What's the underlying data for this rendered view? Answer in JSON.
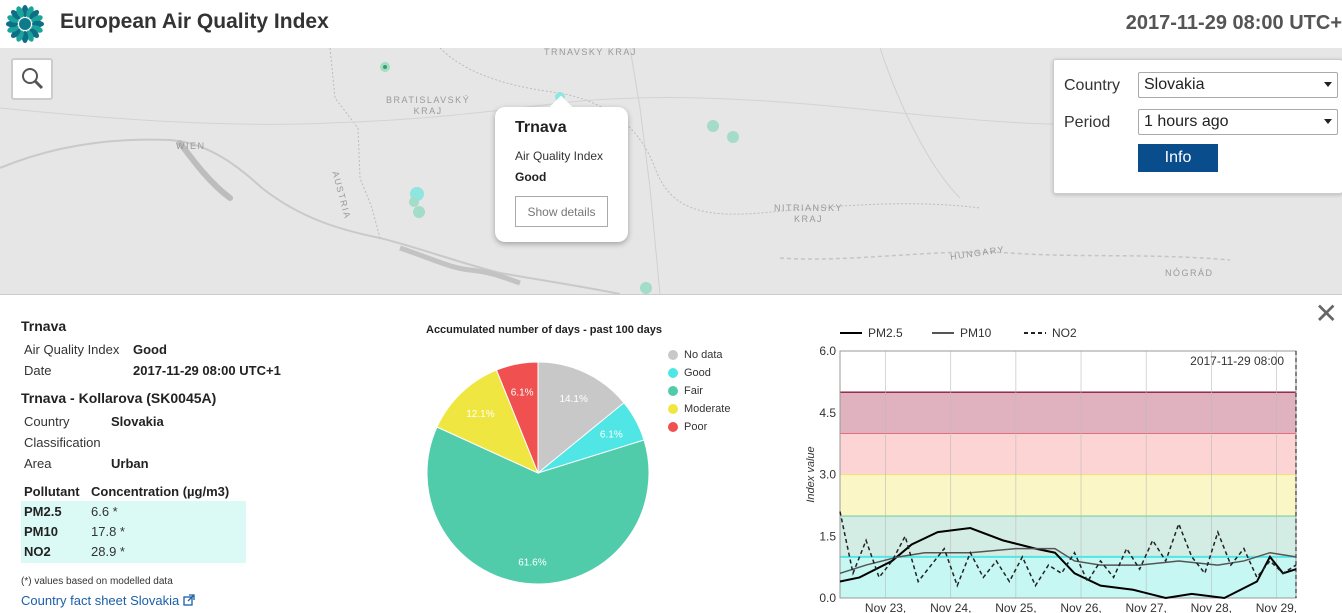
{
  "header": {
    "title": "European Air Quality Index",
    "datetime": "2017-11-29 08:00 UTC+"
  },
  "map": {
    "labels": {
      "trnavsky": "TRNAVSKÝ KRAJ",
      "bratislavsky_1": "BRATISLAVSKÝ",
      "bratislavsky_2": "KRAJ",
      "wien": "WIEN",
      "austria": "AUSTRIA",
      "nitriansky_1": "NITRIANSKY",
      "nitriansky_2": "KRAJ",
      "hungary": "HUNGARY",
      "nograd": "NÓGRÁD"
    },
    "popup": {
      "title": "Trnava",
      "aqi_label": "Air Quality Index",
      "aqi_value": "Good",
      "button": "Show details"
    }
  },
  "controls": {
    "country_label": "Country",
    "country_value": "Slovakia",
    "period_label": "Period",
    "period_value": "1 hours ago",
    "info_button": "Info"
  },
  "details": {
    "city": "Trnava",
    "aqi_label": "Air Quality Index",
    "aqi_value": "Good",
    "date_label": "Date",
    "date_value": "2017-11-29 08:00 UTC+1",
    "station": "Trnava - Kollarova (SK0045A)",
    "country_label": "Country",
    "country_value": "Slovakia",
    "classification_label": "Classification",
    "area_label": "Area",
    "area_value": "Urban",
    "pollutant_header": "Pollutant",
    "concentration_header": "Concentration (µg/m3)",
    "pollutants": [
      {
        "name": "PM2.5",
        "value": "6.6 *"
      },
      {
        "name": "PM10",
        "value": "17.8 *"
      },
      {
        "name": "NO2",
        "value": "28.9 *"
      }
    ],
    "footnote": "(*) values based on modelled data",
    "fact_sheet_link": "Country fact sheet Slovakia"
  },
  "chart_data": [
    {
      "type": "pie",
      "title": "Accumulated number of days - past 100 days",
      "categories": [
        "No data",
        "Good",
        "Fair",
        "Moderate",
        "Poor"
      ],
      "values": [
        14.1,
        6.1,
        61.6,
        12.1,
        6.1
      ],
      "labels": [
        "14.1%",
        "6.1%",
        "61.6%",
        "12.1%",
        "6.1%"
      ],
      "colors": [
        "#c8c8c8",
        "#50e6e6",
        "#50ccaa",
        "#f0e641",
        "#f05050"
      ],
      "legend_placement": "right"
    },
    {
      "type": "line",
      "ylabel": "Index value",
      "ylim": [
        0,
        6
      ],
      "yticks": [
        "0.0",
        "1.5",
        "3.0",
        "4.5",
        "6.0"
      ],
      "xticks": [
        "Nov 23,",
        "Nov 24,",
        "Nov 25,",
        "Nov 26,",
        "Nov 27,",
        "Nov 28,",
        "Nov 29,"
      ],
      "marker_label": "2017-11-29 08:00",
      "bands": [
        {
          "from": 0,
          "to": 1,
          "color": "#c6f7f2",
          "line": "#50e6e6"
        },
        {
          "from": 1,
          "to": 2,
          "color": "#d3ede4",
          "line": "#3cb98c"
        },
        {
          "from": 2,
          "to": 3,
          "color": "#fbf6c6",
          "line": "#f0e641"
        },
        {
          "from": 3,
          "to": 4,
          "color": "#fcd4d4",
          "line": "#e65050"
        },
        {
          "from": 4,
          "to": 5,
          "color": "#e0b2bf",
          "line": "#8c1c3b"
        }
      ],
      "series": [
        {
          "name": "PM2.5",
          "style": "solid",
          "color": "#000000",
          "x": [
            0,
            0.3,
            0.8,
            1.1,
            1.5,
            2.0,
            2.5,
            3.0,
            3.3,
            3.6,
            4.0,
            4.5,
            5.0,
            5.4,
            5.9,
            6.4,
            6.6,
            6.8,
            7.0
          ],
          "y": [
            0.4,
            0.5,
            0.9,
            1.3,
            1.6,
            1.7,
            1.4,
            1.2,
            1.1,
            0.6,
            0.3,
            0.2,
            0.0,
            0.1,
            0.0,
            0.4,
            1.0,
            0.6,
            0.7
          ]
        },
        {
          "name": "PM10",
          "style": "solid",
          "color": "#555555",
          "x": [
            0,
            0.4,
            0.9,
            1.3,
            2.0,
            2.7,
            3.3,
            3.6,
            4.0,
            4.6,
            5.2,
            5.8,
            6.2,
            6.6,
            7.0
          ],
          "y": [
            0.6,
            0.8,
            1.0,
            1.1,
            1.1,
            1.2,
            1.2,
            0.9,
            0.8,
            0.8,
            0.9,
            0.8,
            0.9,
            1.1,
            1.0
          ]
        },
        {
          "name": "NO2",
          "style": "dashed",
          "color": "#222222",
          "x": [
            0,
            0.2,
            0.4,
            0.6,
            0.8,
            1.0,
            1.2,
            1.4,
            1.6,
            1.8,
            2.0,
            2.2,
            2.4,
            2.6,
            2.8,
            3.0,
            3.2,
            3.4,
            3.6,
            3.8,
            4.0,
            4.2,
            4.4,
            4.6,
            4.8,
            5.0,
            5.2,
            5.4,
            5.6,
            5.8,
            6.0,
            6.2,
            6.4,
            6.6,
            6.8,
            7.0
          ],
          "y": [
            2.1,
            0.6,
            1.4,
            0.5,
            0.9,
            1.5,
            0.4,
            0.8,
            1.2,
            0.3,
            1.1,
            0.5,
            0.9,
            0.4,
            1.0,
            0.3,
            0.8,
            0.6,
            1.1,
            0.4,
            0.9,
            0.5,
            1.2,
            0.7,
            1.4,
            0.9,
            1.8,
            1.0,
            0.6,
            1.6,
            0.8,
            1.2,
            0.5,
            0.9,
            0.6,
            0.8
          ]
        }
      ],
      "legend_placement": "top"
    }
  ]
}
